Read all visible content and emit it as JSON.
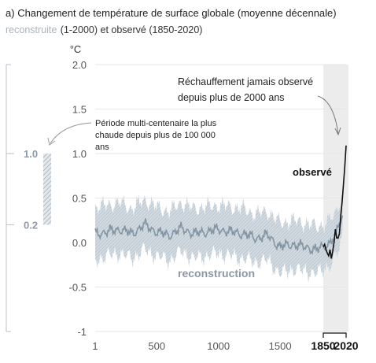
{
  "chart_data": {
    "type": "line",
    "title_prefix": "a)",
    "title": "Changement de température de surface globale (moyenne décennale)",
    "subtitle_grey": "reconstruite",
    "subtitle_rest": "(1-2000) et observé (1850-2020)",
    "ylabel": "°C",
    "ylim": [
      -1.0,
      2.0
    ],
    "xlim": [
      1,
      2020
    ],
    "y_ticks": [
      "2.0",
      "1.5",
      "1.0",
      "0.5",
      "0.0",
      "-0.5",
      "-1"
    ],
    "x_ticks": [
      "1",
      "500",
      "1000",
      "1500"
    ],
    "x_ticks_bold": [
      "1850",
      "2020"
    ],
    "annotation_right_line1": "Réchauffement jamais observé",
    "annotation_right_line2": "depuis plus de 2000 ans",
    "annotation_left_line1": "Période multi-centenaire la plus",
    "annotation_left_line2": "chaude depuis plus de 100 000",
    "annotation_left_line3": "ans",
    "side_bar": {
      "low": 0.2,
      "high": 1.0,
      "low_label": "0.2",
      "high_label": "1.0"
    },
    "series": [
      {
        "name": "reconstruction",
        "x": [
          1,
          100,
          200,
          300,
          400,
          500,
          600,
          700,
          800,
          900,
          1000,
          1100,
          1200,
          1300,
          1400,
          1500,
          1600,
          1700,
          1800,
          1850,
          1900,
          1950,
          2000
        ],
        "values": [
          0.1,
          0.12,
          0.15,
          0.1,
          0.2,
          0.12,
          0.08,
          0.16,
          0.1,
          0.12,
          0.15,
          0.12,
          0.1,
          0.05,
          0.08,
          -0.05,
          -0.02,
          -0.05,
          -0.08,
          -0.05,
          0.0,
          0.1,
          0.35
        ],
        "band_low": [
          -0.2,
          -0.15,
          -0.12,
          -0.18,
          -0.08,
          -0.15,
          -0.2,
          -0.1,
          -0.18,
          -0.15,
          -0.12,
          -0.15,
          -0.18,
          -0.22,
          -0.2,
          -0.35,
          -0.3,
          -0.32,
          -0.35,
          -0.3,
          -0.25,
          -0.15,
          0.1
        ],
        "band_high": [
          0.4,
          0.42,
          0.45,
          0.38,
          0.48,
          0.4,
          0.35,
          0.45,
          0.38,
          0.4,
          0.42,
          0.4,
          0.38,
          0.32,
          0.35,
          0.22,
          0.25,
          0.22,
          0.18,
          0.2,
          0.25,
          0.35,
          0.6
        ]
      },
      {
        "name": "observé",
        "x": [
          1850,
          1860,
          1870,
          1880,
          1890,
          1900,
          1910,
          1920,
          1930,
          1940,
          1950,
          1960,
          1970,
          1980,
          1990,
          2000,
          2010,
          2020
        ],
        "values": [
          -0.05,
          -0.02,
          -0.08,
          -0.12,
          -0.15,
          -0.08,
          -0.18,
          -0.1,
          0.0,
          0.15,
          0.05,
          0.05,
          0.1,
          0.3,
          0.45,
          0.65,
          0.85,
          1.09
        ]
      }
    ],
    "shaded_period": [
      1850,
      2020
    ]
  }
}
